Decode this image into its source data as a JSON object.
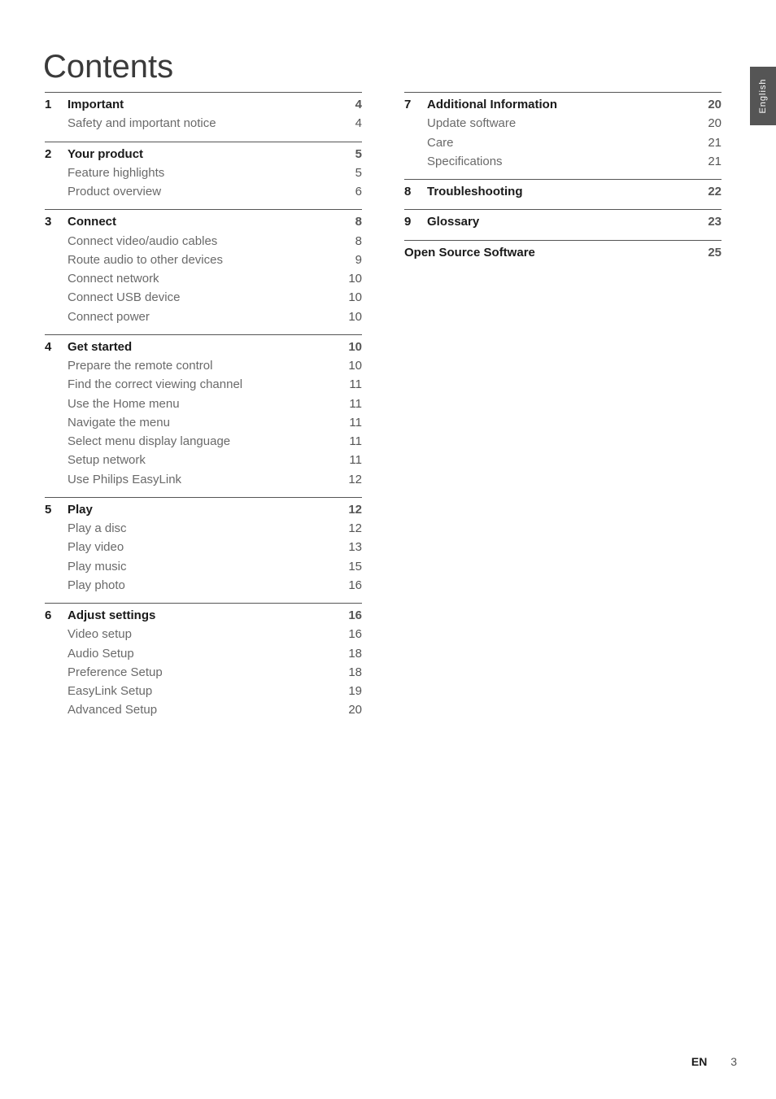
{
  "page": {
    "title": "Contents",
    "language_tab": "English",
    "footer_lang": "EN",
    "footer_page": "3"
  },
  "toc": {
    "sections": [
      {
        "num": "1",
        "title": "Important",
        "page": "4",
        "items": [
          {
            "label": "Safety and important notice",
            "page": "4"
          }
        ]
      },
      {
        "num": "2",
        "title": "Your product",
        "page": "5",
        "items": [
          {
            "label": "Feature highlights",
            "page": "5"
          },
          {
            "label": "Product overview",
            "page": "6"
          }
        ]
      },
      {
        "num": "3",
        "title": "Connect",
        "page": "8",
        "items": [
          {
            "label": "Connect video/audio cables",
            "page": "8"
          },
          {
            "label": "Route audio to other devices",
            "page": "9"
          },
          {
            "label": "Connect network",
            "page": "10"
          },
          {
            "label": "Connect USB device",
            "page": "10"
          },
          {
            "label": "Connect power",
            "page": "10"
          }
        ]
      },
      {
        "num": "4",
        "title": "Get started",
        "page": "10",
        "items": [
          {
            "label": "Prepare the remote control",
            "page": "10"
          },
          {
            "label": "Find the correct viewing channel",
            "page": "11"
          },
          {
            "label": "Use the Home menu",
            "page": "11"
          },
          {
            "label": "Navigate the menu",
            "page": "11"
          },
          {
            "label": "Select menu display language",
            "page": "11"
          },
          {
            "label": "Setup network",
            "page": "11"
          },
          {
            "label": "Use Philips EasyLink",
            "page": "12"
          }
        ]
      },
      {
        "num": "5",
        "title": "Play",
        "page": "12",
        "items": [
          {
            "label": "Play a disc",
            "page": "12"
          },
          {
            "label": "Play video",
            "page": "13"
          },
          {
            "label": "Play music",
            "page": "15"
          },
          {
            "label": "Play photo",
            "page": "16"
          }
        ]
      },
      {
        "num": "6",
        "title": "Adjust settings",
        "page": "16",
        "items": [
          {
            "label": "Video setup",
            "page": "16"
          },
          {
            "label": "Audio Setup",
            "page": "18"
          },
          {
            "label": "Preference Setup",
            "page": "18"
          },
          {
            "label": "EasyLink Setup",
            "page": "19"
          },
          {
            "label": "Advanced Setup",
            "page": "20"
          }
        ]
      },
      {
        "num": "7",
        "title": "Additional Information",
        "page": "20",
        "items": [
          {
            "label": "Update software",
            "page": "20"
          },
          {
            "label": "Care",
            "page": "21"
          },
          {
            "label": "Specifications",
            "page": "21"
          }
        ]
      },
      {
        "num": "8",
        "title": "Troubleshooting",
        "page": "22",
        "items": []
      },
      {
        "num": "9",
        "title": "Glossary",
        "page": "23",
        "items": []
      }
    ],
    "open_source": {
      "label": "Open Source Software",
      "page": "25"
    }
  }
}
